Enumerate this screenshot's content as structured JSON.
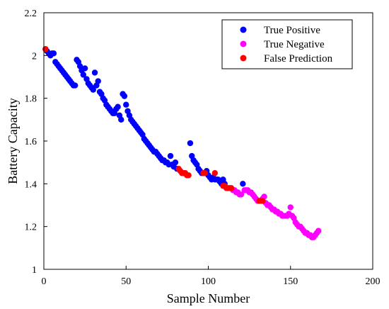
{
  "chart_data": {
    "type": "scatter",
    "title": "",
    "xlabel": "Sample Number",
    "ylabel": "Battery Capacity",
    "xlim": [
      0,
      200
    ],
    "ylim": [
      1,
      2.2
    ],
    "xticks": [
      0,
      50,
      100,
      150,
      200
    ],
    "yticks": [
      1,
      1.2,
      1.4,
      1.6,
      1.8,
      2,
      2.2
    ],
    "xtick_labels": [
      "0",
      "50",
      "100",
      "150",
      "200"
    ],
    "ytick_labels": [
      "1",
      "1.2",
      "1.4",
      "1.6",
      "1.8",
      "2",
      "2.2"
    ],
    "grid": false,
    "legend_position": "top-right",
    "series": [
      {
        "name": "True Positive",
        "color": "#0000ff",
        "points": [
          [
            1,
            2.03
          ],
          [
            2,
            2.02
          ],
          [
            3,
            2.01
          ],
          [
            4,
            2.0
          ],
          [
            5,
            2.01
          ],
          [
            6,
            2.01
          ],
          [
            7,
            1.97
          ],
          [
            8,
            1.96
          ],
          [
            9,
            1.95
          ],
          [
            10,
            1.94
          ],
          [
            11,
            1.93
          ],
          [
            12,
            1.92
          ],
          [
            13,
            1.91
          ],
          [
            14,
            1.9
          ],
          [
            15,
            1.89
          ],
          [
            16,
            1.88
          ],
          [
            17,
            1.87
          ],
          [
            18,
            1.86
          ],
          [
            19,
            1.86
          ],
          [
            20,
            1.98
          ],
          [
            21,
            1.97
          ],
          [
            22,
            1.95
          ],
          [
            23,
            1.93
          ],
          [
            24,
            1.91
          ],
          [
            25,
            1.94
          ],
          [
            26,
            1.89
          ],
          [
            27,
            1.87
          ],
          [
            28,
            1.86
          ],
          [
            29,
            1.85
          ],
          [
            30,
            1.84
          ],
          [
            31,
            1.92
          ],
          [
            32,
            1.86
          ],
          [
            33,
            1.88
          ],
          [
            34,
            1.83
          ],
          [
            35,
            1.82
          ],
          [
            36,
            1.8
          ],
          [
            37,
            1.79
          ],
          [
            38,
            1.77
          ],
          [
            39,
            1.76
          ],
          [
            40,
            1.75
          ],
          [
            41,
            1.74
          ],
          [
            42,
            1.73
          ],
          [
            43,
            1.73
          ],
          [
            44,
            1.75
          ],
          [
            45,
            1.76
          ],
          [
            46,
            1.72
          ],
          [
            47,
            1.7
          ],
          [
            48,
            1.82
          ],
          [
            49,
            1.81
          ],
          [
            50,
            1.77
          ],
          [
            51,
            1.74
          ],
          [
            52,
            1.72
          ],
          [
            53,
            1.7
          ],
          [
            54,
            1.69
          ],
          [
            55,
            1.68
          ],
          [
            56,
            1.67
          ],
          [
            57,
            1.66
          ],
          [
            58,
            1.65
          ],
          [
            59,
            1.64
          ],
          [
            60,
            1.63
          ],
          [
            61,
            1.61
          ],
          [
            62,
            1.6
          ],
          [
            63,
            1.59
          ],
          [
            64,
            1.58
          ],
          [
            65,
            1.57
          ],
          [
            66,
            1.56
          ],
          [
            67,
            1.55
          ],
          [
            68,
            1.55
          ],
          [
            69,
            1.54
          ],
          [
            70,
            1.53
          ],
          [
            71,
            1.52
          ],
          [
            72,
            1.51
          ],
          [
            73,
            1.51
          ],
          [
            74,
            1.5
          ],
          [
            75,
            1.5
          ],
          [
            76,
            1.49
          ],
          [
            77,
            1.53
          ],
          [
            78,
            1.49
          ],
          [
            79,
            1.48
          ],
          [
            80,
            1.5
          ],
          [
            81,
            1.47
          ],
          [
            89,
            1.59
          ],
          [
            90,
            1.53
          ],
          [
            91,
            1.51
          ],
          [
            92,
            1.5
          ],
          [
            93,
            1.49
          ],
          [
            94,
            1.47
          ],
          [
            95,
            1.46
          ],
          [
            96,
            1.45
          ],
          [
            99,
            1.46
          ],
          [
            100,
            1.44
          ],
          [
            101,
            1.43
          ],
          [
            102,
            1.42
          ],
          [
            103,
            1.43
          ],
          [
            104,
            1.42
          ],
          [
            105,
            1.42
          ],
          [
            106,
            1.42
          ],
          [
            107,
            1.41
          ],
          [
            108,
            1.4
          ],
          [
            109,
            1.42
          ],
          [
            110,
            1.4
          ],
          [
            121,
            1.4
          ]
        ]
      },
      {
        "name": "True Negative",
        "color": "#ff00ff",
        "points": [
          [
            115,
            1.37
          ],
          [
            116,
            1.37
          ],
          [
            117,
            1.36
          ],
          [
            118,
            1.36
          ],
          [
            119,
            1.35
          ],
          [
            120,
            1.35
          ],
          [
            122,
            1.37
          ],
          [
            123,
            1.37
          ],
          [
            124,
            1.37
          ],
          [
            125,
            1.36
          ],
          [
            126,
            1.36
          ],
          [
            127,
            1.35
          ],
          [
            128,
            1.34
          ],
          [
            129,
            1.33
          ],
          [
            130,
            1.32
          ],
          [
            133,
            1.33
          ],
          [
            134,
            1.34
          ],
          [
            135,
            1.31
          ],
          [
            136,
            1.3
          ],
          [
            137,
            1.3
          ],
          [
            138,
            1.29
          ],
          [
            139,
            1.28
          ],
          [
            140,
            1.28
          ],
          [
            141,
            1.27
          ],
          [
            142,
            1.27
          ],
          [
            143,
            1.26
          ],
          [
            144,
            1.26
          ],
          [
            145,
            1.25
          ],
          [
            146,
            1.25
          ],
          [
            147,
            1.25
          ],
          [
            148,
            1.25
          ],
          [
            149,
            1.26
          ],
          [
            150,
            1.29
          ],
          [
            151,
            1.25
          ],
          [
            152,
            1.24
          ],
          [
            153,
            1.22
          ],
          [
            154,
            1.21
          ],
          [
            155,
            1.2
          ],
          [
            156,
            1.2
          ],
          [
            157,
            1.19
          ],
          [
            158,
            1.18
          ],
          [
            159,
            1.17
          ],
          [
            160,
            1.17
          ],
          [
            161,
            1.16
          ],
          [
            162,
            1.16
          ],
          [
            163,
            1.15
          ],
          [
            164,
            1.15
          ],
          [
            165,
            1.16
          ],
          [
            166,
            1.17
          ],
          [
            167,
            1.18
          ]
        ]
      },
      {
        "name": "False Prediction",
        "color": "#ff0000",
        "points": [
          [
            1,
            2.03
          ],
          [
            82,
            1.47
          ],
          [
            83,
            1.46
          ],
          [
            84,
            1.45
          ],
          [
            85,
            1.45
          ],
          [
            86,
            1.45
          ],
          [
            87,
            1.44
          ],
          [
            88,
            1.44
          ],
          [
            97,
            1.45
          ],
          [
            98,
            1.45
          ],
          [
            104,
            1.45
          ],
          [
            109,
            1.39
          ],
          [
            110,
            1.39
          ],
          [
            111,
            1.38
          ],
          [
            112,
            1.38
          ],
          [
            113,
            1.38
          ],
          [
            114,
            1.38
          ],
          [
            131,
            1.32
          ],
          [
            132,
            1.32
          ],
          [
            133,
            1.32
          ]
        ]
      }
    ]
  }
}
